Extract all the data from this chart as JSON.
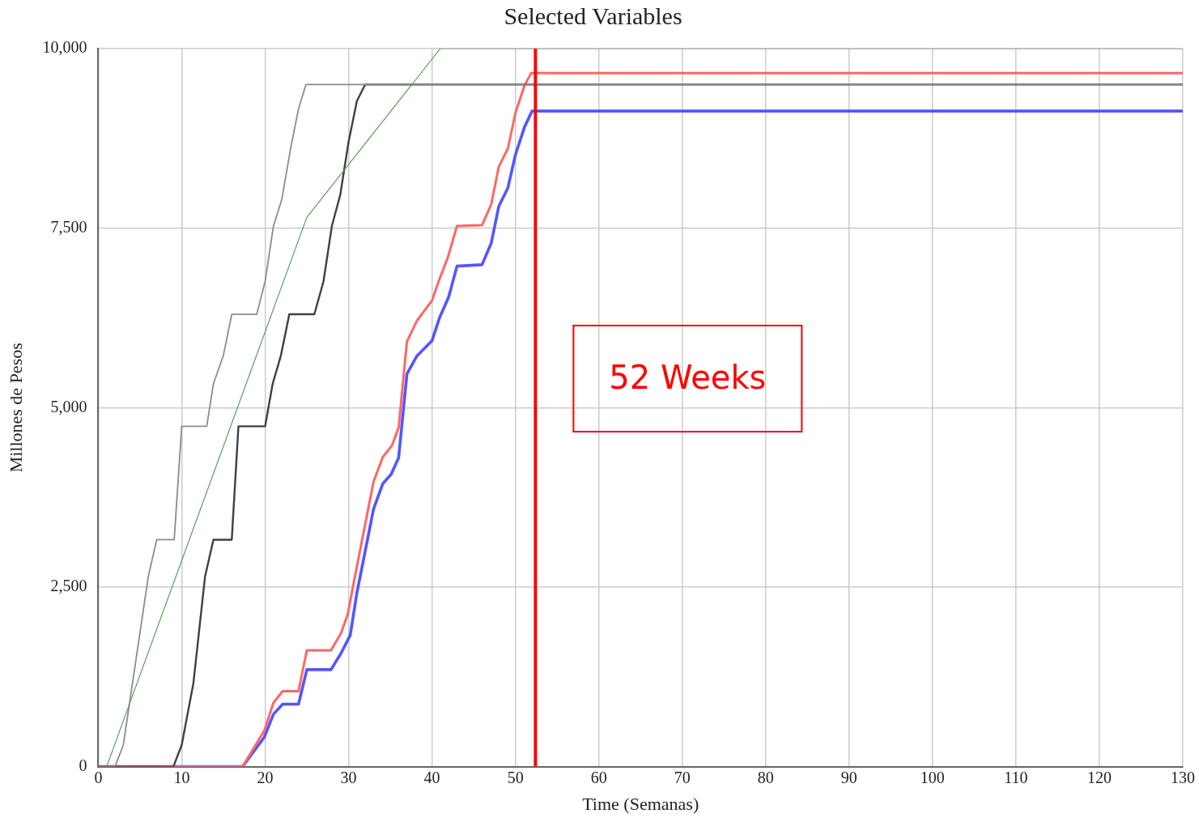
{
  "chart_data": {
    "type": "line",
    "title": "Selected Variables",
    "xlabel": "Time (Semanas)",
    "ylabel": "Millones de Pesos",
    "xlim": [
      0,
      130
    ],
    "xticks": [
      0,
      10,
      20,
      30,
      40,
      50,
      60,
      70,
      80,
      90,
      100,
      110,
      120,
      130
    ],
    "ylim": [
      0,
      10000
    ],
    "yticks": [
      0,
      {
        "value": 2500,
        "label": "2,500"
      },
      {
        "value": 5000,
        "label": "5,000"
      },
      {
        "value": 7500,
        "label": "7,500"
      },
      {
        "value": 10000,
        "label": "10,000"
      }
    ],
    "grid": true,
    "legend": false,
    "marker": "none",
    "line_style": "solid",
    "series": [
      {
        "color": "#5a9e5a",
        "x": [
          1,
          25,
          41,
          130
        ],
        "values": [
          0,
          7650,
          10000,
          10000
        ]
      },
      {
        "color": "#8c8c8c",
        "x": [
          0,
          2,
          3,
          6,
          7,
          9.1,
          10,
          13,
          13.8,
          15,
          16,
          19,
          20,
          21,
          22,
          23.1,
          24,
          24.9,
          130
        ],
        "values": [
          0,
          0,
          300,
          2650,
          3160,
          3160,
          4740,
          4740,
          5330,
          5730,
          6300,
          6300,
          6760,
          7530,
          7900,
          8640,
          9160,
          9500,
          9500
        ]
      },
      {
        "color": "#404040",
        "x": [
          0,
          9,
          10,
          11.4,
          12.8,
          13.8,
          16,
          16.8,
          20,
          20.9,
          21.9,
          22.9,
          25.9,
          27,
          28,
          29,
          30,
          31,
          32,
          130
        ],
        "values": [
          0,
          0,
          300,
          1160,
          2650,
          3160,
          3160,
          4740,
          4740,
          5330,
          5730,
          6300,
          6300,
          6760,
          7530,
          7960,
          8700,
          9270,
          9500,
          9500
        ]
      },
      {
        "color": "#ff6666",
        "x": [
          0,
          17.3,
          19.9,
          21,
          22.1,
          24,
          25,
          27.9,
          29.1,
          29.9,
          30.7,
          33,
          34.1,
          35.2,
          36,
          37,
          38.2,
          40,
          40.9,
          41.9,
          43,
          46,
          47.1,
          48,
          49.1,
          50,
          51.1,
          51.9,
          130
        ],
        "values": [
          0,
          0,
          500,
          890,
          1050,
          1050,
          1620,
          1620,
          1860,
          2120,
          2610,
          3970,
          4310,
          4470,
          4720,
          5920,
          6210,
          6490,
          6790,
          7090,
          7530,
          7540,
          7830,
          8350,
          8610,
          9100,
          9490,
          9660,
          9660
        ]
      },
      {
        "color": "#5555ff",
        "x": [
          0,
          17.3,
          19.9,
          21,
          22.1,
          24,
          25,
          27.9,
          29.1,
          30.2,
          31,
          33,
          34.1,
          35.1,
          36,
          37,
          38.2,
          40,
          40.9,
          42,
          43,
          46,
          47.1,
          48,
          49.1,
          50,
          51.1,
          52,
          130
        ],
        "values": [
          0,
          0,
          410,
          730,
          870,
          870,
          1350,
          1350,
          1580,
          1830,
          2420,
          3590,
          3940,
          4070,
          4300,
          5470,
          5720,
          5930,
          6250,
          6540,
          6970,
          6990,
          7290,
          7800,
          8060,
          8520,
          8910,
          9130,
          9130
        ]
      }
    ],
    "ref_lines": [
      {
        "axis": "x",
        "value": 52.4,
        "label": "52 Weeks",
        "color": "#ff0000",
        "line_style": "solid"
      }
    ]
  }
}
